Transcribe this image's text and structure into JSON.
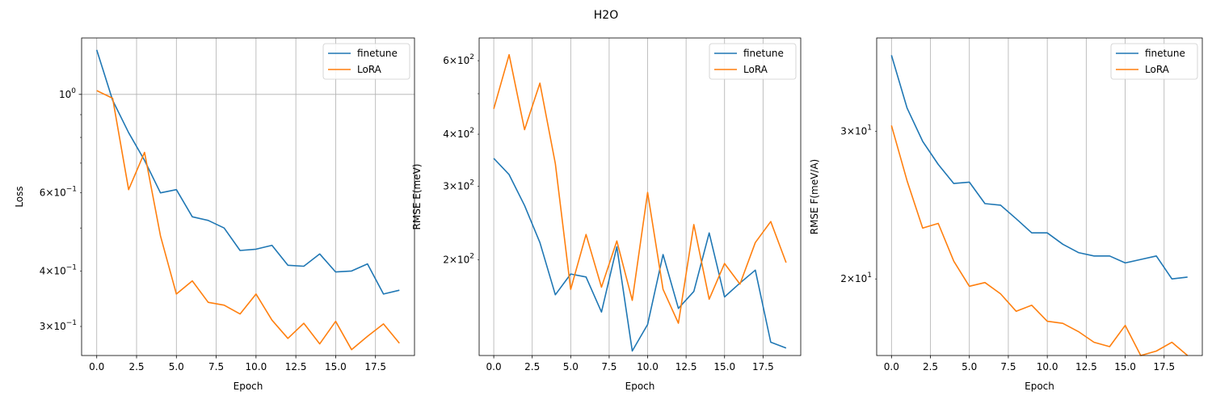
{
  "figure": {
    "suptitle": "H2O"
  },
  "chart_data": [
    {
      "type": "line",
      "title": "",
      "xlabel": "Epoch",
      "ylabel": "Loss",
      "yscale": "log",
      "xlim": [
        -0.95,
        19.95
      ],
      "ylim": [
        0.258,
        1.34
      ],
      "x": [
        0,
        1,
        2,
        3,
        4,
        5,
        6,
        7,
        8,
        9,
        10,
        11,
        12,
        13,
        14,
        15,
        16,
        17,
        18,
        19
      ],
      "xticks": [
        0,
        2.5,
        5,
        7.5,
        10,
        12.5,
        15,
        17.5
      ],
      "xtick_labels": [
        "0.0",
        "2.5",
        "5.0",
        "7.5",
        "10.0",
        "12.5",
        "15.0",
        "17.5"
      ],
      "yticks_major": [
        1.0
      ],
      "ytick_major_labels": [
        "10^0"
      ],
      "yticks_minor": [
        0.3,
        0.4,
        0.6
      ],
      "ytick_minor_labels": [
        "3×10^−1",
        "4×10^−1",
        "6×10^−1"
      ],
      "grid": true,
      "legend_position": "upper right",
      "series": [
        {
          "name": "finetune",
          "color": "#1f77b4",
          "values": [
            1.26,
            0.97,
            0.82,
            0.71,
            0.6,
            0.61,
            0.53,
            0.52,
            0.5,
            0.445,
            0.448,
            0.457,
            0.412,
            0.41,
            0.437,
            0.398,
            0.4,
            0.415,
            0.355,
            0.362
          ]
        },
        {
          "name": "LoRA",
          "color": "#ff7f0e",
          "values": [
            1.02,
            0.98,
            0.61,
            0.74,
            0.48,
            0.355,
            0.38,
            0.34,
            0.335,
            0.32,
            0.355,
            0.31,
            0.282,
            0.305,
            0.274,
            0.308,
            0.266,
            0.285,
            0.304,
            0.275
          ]
        }
      ]
    },
    {
      "type": "line",
      "title": "",
      "xlabel": "Epoch",
      "ylabel": "RMSE E(meV)",
      "yscale": "log",
      "xlim": [
        -0.95,
        19.95
      ],
      "ylim": [
        118,
        680
      ],
      "x": [
        0,
        1,
        2,
        3,
        4,
        5,
        6,
        7,
        8,
        9,
        10,
        11,
        12,
        13,
        14,
        15,
        16,
        17,
        18,
        19
      ],
      "xticks": [
        0,
        2.5,
        5,
        7.5,
        10,
        12.5,
        15,
        17.5
      ],
      "xtick_labels": [
        "0.0",
        "2.5",
        "5.0",
        "7.5",
        "10.0",
        "12.5",
        "15.0",
        "17.5"
      ],
      "yticks_major": [],
      "ytick_major_labels": [],
      "yticks_minor": [
        200,
        300,
        400,
        600
      ],
      "ytick_minor_labels": [
        "2×10^2",
        "3×10^2",
        "4×10^2",
        "6×10^2"
      ],
      "grid": true,
      "legend_position": "upper right",
      "series": [
        {
          "name": "finetune",
          "color": "#1f77b4",
          "values": [
            350,
            320,
            270,
            220,
            165,
            185,
            182,
            150,
            215,
            121,
            140,
            206,
            153,
            168,
            232,
            163,
            176,
            189,
            127,
            123
          ]
        },
        {
          "name": "LoRA",
          "color": "#ff7f0e",
          "values": [
            460,
            620,
            410,
            530,
            340,
            170,
            230,
            172,
            222,
            160,
            290,
            170,
            141,
            243,
            161,
            196,
            175,
            220,
            247,
            197
          ]
        }
      ]
    },
    {
      "type": "line",
      "title": "",
      "xlabel": "Epoch",
      "ylabel": "RMSE F(meV/A)",
      "yscale": "log",
      "xlim": [
        -0.95,
        19.95
      ],
      "ylim": [
        16.2,
        38.8
      ],
      "x": [
        0,
        1,
        2,
        3,
        4,
        5,
        6,
        7,
        8,
        9,
        10,
        11,
        12,
        13,
        14,
        15,
        16,
        17,
        18,
        19
      ],
      "xticks": [
        0,
        2.5,
        5,
        7.5,
        10,
        12.5,
        15,
        17.5
      ],
      "xtick_labels": [
        "0.0",
        "2.5",
        "5.0",
        "7.5",
        "10.0",
        "12.5",
        "15.0",
        "17.5"
      ],
      "yticks_major": [],
      "ytick_major_labels": [],
      "yticks_minor": [
        20,
        30
      ],
      "ytick_minor_labels": [
        "2×10^1",
        "3×10^1"
      ],
      "grid": true,
      "legend_position": "upper right",
      "series": [
        {
          "name": "finetune",
          "color": "#1f77b4",
          "values": [
            37.0,
            32.0,
            29.2,
            27.4,
            26.0,
            26.1,
            24.6,
            24.5,
            23.6,
            22.7,
            22.7,
            22.0,
            21.5,
            21.3,
            21.3,
            20.9,
            21.1,
            21.3,
            20.0,
            20.1
          ]
        },
        {
          "name": "LoRA",
          "color": "#ff7f0e",
          "values": [
            30.5,
            26.2,
            23.0,
            23.3,
            21.0,
            19.6,
            19.8,
            19.2,
            18.3,
            18.6,
            17.8,
            17.7,
            17.3,
            16.8,
            16.6,
            17.6,
            16.2,
            16.4,
            16.8,
            16.2
          ]
        }
      ]
    }
  ]
}
